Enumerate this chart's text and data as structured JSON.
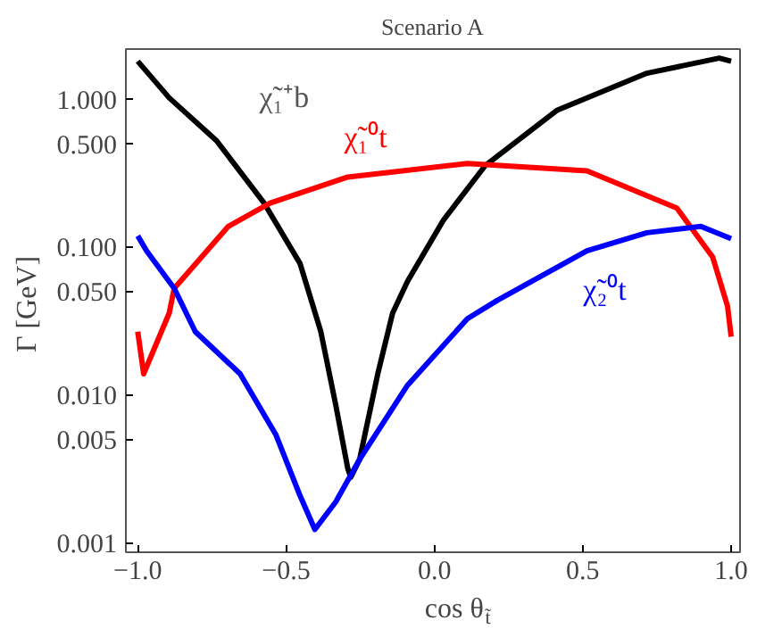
{
  "chart_data": {
    "type": "line",
    "title": "Scenario A",
    "xlabel": "cos θ$_{t̃}$",
    "ylabel": "Γ  [GeV]",
    "log": "y",
    "grid": false,
    "xlim": [
      -1.04,
      1.03
    ],
    "ylim": [
      0.00087,
      2.2
    ],
    "xticks": [
      {
        "value": -1,
        "label": "−1.0"
      },
      {
        "value": -0.5,
        "label": "−0.5"
      },
      {
        "value": 0,
        "label": "0.0"
      },
      {
        "value": 0.5,
        "label": "0.5"
      },
      {
        "value": 1,
        "label": "1.0"
      }
    ],
    "yticks": [
      {
        "value": 0.001,
        "label": "0.001"
      },
      {
        "value": 0.005,
        "label": "0.005"
      },
      {
        "value": 0.01,
        "label": "0.010"
      },
      {
        "value": 0.05,
        "label": "0.050"
      },
      {
        "value": 0.1,
        "label": "0.100"
      },
      {
        "value": 0.5,
        "label": "0.500"
      },
      {
        "value": 1,
        "label": "1.000"
      }
    ],
    "series": [
      {
        "name": "χ̃₁⁺b",
        "color": "#000000",
        "x": [
          -1.0,
          -0.894,
          -0.735,
          -0.574,
          -0.453,
          -0.383,
          -0.333,
          -0.292,
          -0.282,
          -0.252,
          -0.191,
          -0.141,
          -0.091,
          0.03,
          0.172,
          0.414,
          0.716,
          0.96,
          1.0
        ],
        "values": [
          1.82,
          1.03,
          0.53,
          0.2,
          0.078,
          0.027,
          0.0087,
          0.0032,
          0.0028,
          0.0037,
          0.014,
          0.036,
          0.059,
          0.153,
          0.36,
          0.85,
          1.51,
          1.91,
          1.82
        ]
      },
      {
        "name": "χ̃₁⁰t",
        "color": "#ff0000",
        "x": [
          -1.0,
          -0.98,
          -0.894,
          -0.877,
          -0.695,
          -0.554,
          -0.292,
          0.111,
          0.514,
          0.817,
          0.938,
          0.988,
          1.0
        ],
        "values": [
          0.027,
          0.014,
          0.036,
          0.053,
          0.139,
          0.2,
          0.3,
          0.37,
          0.33,
          0.185,
          0.086,
          0.04,
          0.025
        ]
      },
      {
        "name": "χ̃₂⁰t",
        "color": "#0000ff",
        "x": [
          -1.0,
          -0.97,
          -0.877,
          -0.806,
          -0.655,
          -0.534,
          -0.453,
          -0.403,
          -0.333,
          -0.252,
          -0.091,
          0.111,
          0.212,
          0.514,
          0.716,
          0.898,
          1.0
        ],
        "values": [
          0.12,
          0.095,
          0.053,
          0.027,
          0.014,
          0.0054,
          0.0021,
          0.00124,
          0.0019,
          0.0037,
          0.0117,
          0.033,
          0.044,
          0.095,
          0.126,
          0.139,
          0.115
        ]
      }
    ]
  }
}
